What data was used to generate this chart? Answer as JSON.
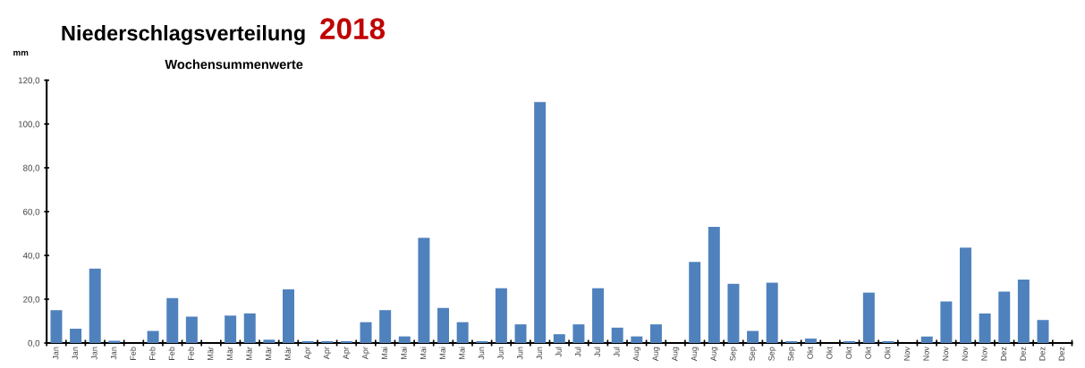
{
  "chart_data": {
    "type": "bar",
    "title": "Niederschlagsverteilung",
    "subtitle": "Wochensummenwerte",
    "ylabel": "mm",
    "annotations": [
      "2018"
    ],
    "categories": [
      "Jan",
      "Jan",
      "Jan",
      "Jan",
      "Feb",
      "Feb",
      "Feb",
      "Feb",
      "Mär",
      "Mär",
      "Mär",
      "Mär",
      "Mär",
      "Apr",
      "Apr",
      "Apr",
      "Apr",
      "Mai",
      "Mai",
      "Mai",
      "Mai",
      "Mai",
      "Jun",
      "Jun",
      "Jun",
      "Jun",
      "Jul",
      "Jul",
      "Jul",
      "Jul",
      "Aug",
      "Aug",
      "Aug",
      "Aug",
      "Aug",
      "Sep",
      "Sep",
      "Sep",
      "Sep",
      "Okt",
      "Okt",
      "Okt",
      "Okt",
      "Okt",
      "Nov",
      "Nov",
      "Nov",
      "Nov",
      "Nov",
      "Dez",
      "Dez",
      "Dez",
      "Dez"
    ],
    "values": [
      15,
      6.5,
      34,
      1,
      0,
      5.5,
      20.5,
      12,
      0,
      12.5,
      13.5,
      1.5,
      24.5,
      0.8,
      0.8,
      0.8,
      9.5,
      15,
      3,
      48,
      16,
      9.5,
      0.8,
      25,
      8.5,
      110,
      4,
      8.5,
      25,
      7,
      3,
      8.5,
      0,
      37,
      53,
      27,
      5.5,
      27.5,
      0.8,
      2,
      0,
      0.8,
      23,
      0.8,
      0,
      3,
      19,
      43.5,
      13.5,
      23.5,
      29,
      10.5,
      null
    ],
    "color": "#4f81bd",
    "ylim": [
      0,
      120
    ],
    "yticks": [
      {
        "value": 0,
        "label": "0,0"
      },
      {
        "value": 20,
        "label": "20,0"
      },
      {
        "value": 40,
        "label": "40,0"
      },
      {
        "value": 60,
        "label": "60,0"
      },
      {
        "value": 80,
        "label": "80,0"
      },
      {
        "value": 100,
        "label": "100,0"
      },
      {
        "value": 120,
        "label": "120,0"
      }
    ],
    "grid": false,
    "legend": false
  }
}
